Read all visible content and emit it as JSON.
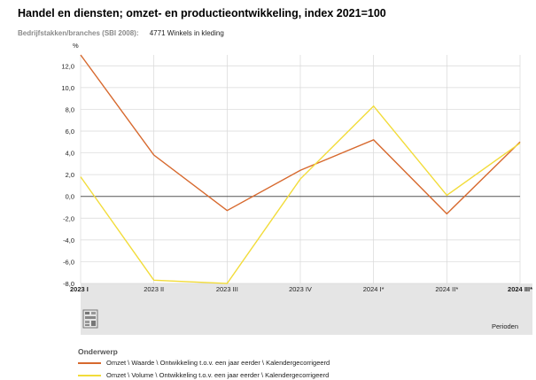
{
  "header": {
    "title": "Handel en diensten; omzet- en productieontwikkeling, index 2021=100"
  },
  "filter": {
    "label": "Bedrijfstakken/branches (SBI 2008):",
    "value": "4771 Winkels in kleding"
  },
  "legend": {
    "title": "Onderwerp"
  },
  "colors": {
    "series1": "#d7692e",
    "series2": "#f2dc3a",
    "grid": "#d8d8d8",
    "zero": "#555555",
    "band": "#e5e5e5"
  },
  "chart_data": {
    "type": "line",
    "ylabel": "%",
    "xlabel": "Perioden",
    "ylim": [
      -8,
      13
    ],
    "yticks": [
      -8,
      -6,
      -4,
      -2,
      0,
      2,
      4,
      6,
      8,
      10,
      12
    ],
    "ytick_labels": [
      "-8,0",
      "-6,0",
      "-4,0",
      "-2,0",
      "0,0",
      "2,0",
      "4,0",
      "6,0",
      "8,0",
      "10,0",
      "12,0"
    ],
    "categories": [
      "2023 I",
      "2023 II",
      "2023 III",
      "2023 IV",
      "2024 I*",
      "2024 II*",
      "2024 III*"
    ],
    "series": [
      {
        "name": "Omzet \\ Waarde \\ Ontwikkeling t.o.v. een jaar eerder \\ Kalendergecorrigeerd",
        "values": [
          13.0,
          3.8,
          -1.3,
          2.4,
          5.2,
          -1.6,
          5.0
        ]
      },
      {
        "name": "Omzet \\ Volume \\ Ontwikkeling t.o.v. een jaar eerder \\ Kalendergecorrigeerd",
        "values": [
          1.8,
          -7.7,
          -8.0,
          1.6,
          8.3,
          0.1,
          4.9
        ]
      }
    ]
  }
}
